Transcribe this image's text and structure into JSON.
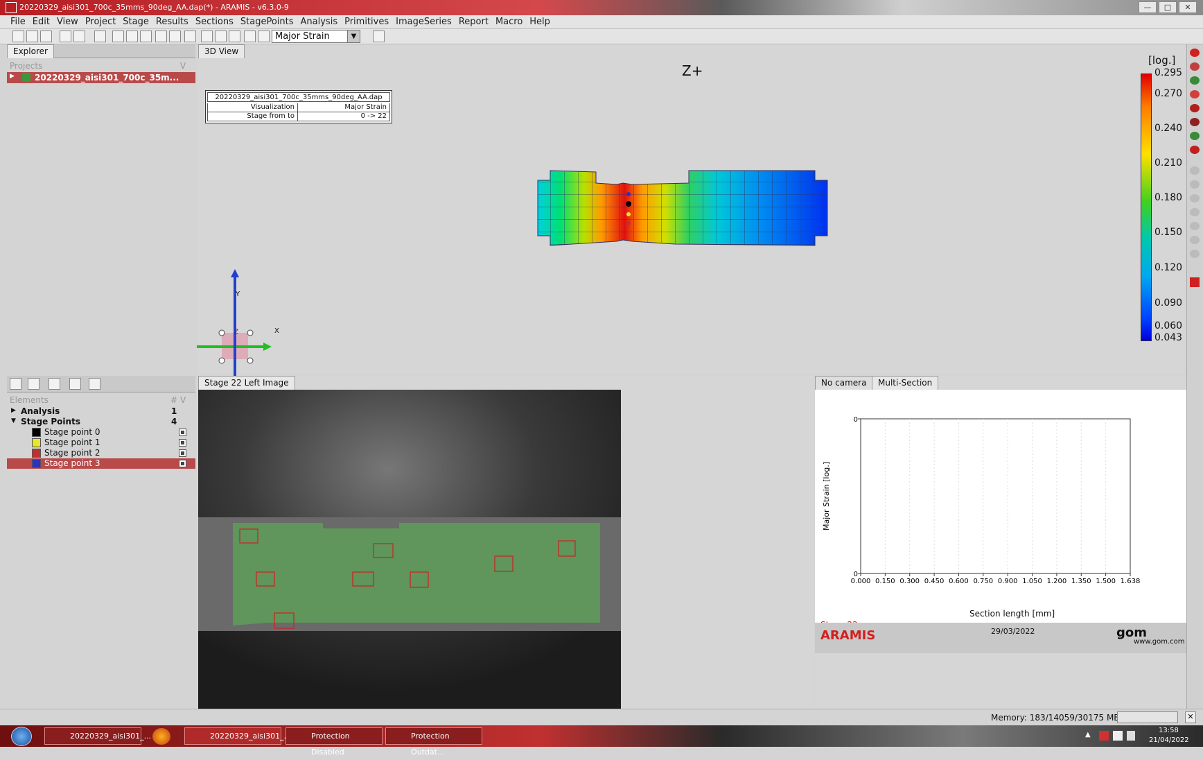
{
  "window": {
    "title": "20220329_aisi301_700c_35mms_90deg_AA.dap(*) - ARAMIS - v6.3.0-9"
  },
  "menu": [
    "File",
    "Edit",
    "View",
    "Project",
    "Stage",
    "Results",
    "Sections",
    "StagePoints",
    "Analysis",
    "Primitives",
    "ImageSeries",
    "Report",
    "Macro",
    "Help"
  ],
  "toolbar": {
    "visualization_select": "Major Strain"
  },
  "explorer": {
    "tab": "Explorer",
    "projects_label": "Projects",
    "projects_flag": "V",
    "project_name": "20220329_aisi301_700c_35m..."
  },
  "elements": {
    "header": "Elements",
    "count_col": "#",
    "flag_col": "V",
    "analysis": {
      "label": "Analysis",
      "count": "1"
    },
    "stage_points": {
      "label": "Stage Points",
      "count": "4"
    },
    "points": [
      {
        "label": "Stage point 0",
        "color": "#000000"
      },
      {
        "label": "Stage point 1",
        "color": "#e6e62a"
      },
      {
        "label": "Stage point 2",
        "color": "#c03030"
      },
      {
        "label": "Stage point 3",
        "color": "#3030c0"
      }
    ]
  },
  "view3d": {
    "tab": "3D View",
    "orientation": "Z+",
    "info_box": {
      "filename": "20220329_aisi301_700c_35mms_90deg_AA.dap",
      "rows": [
        {
          "key": "Visualization",
          "value": "Major Strain"
        },
        {
          "key": "Stage from to",
          "value": "0 -> 22"
        }
      ]
    },
    "legend": {
      "unit": "[log.]",
      "labels": [
        "0.295",
        "0.270",
        "0.240",
        "0.210",
        "0.180",
        "0.150",
        "0.120",
        "0.090",
        "0.060",
        "0.043"
      ]
    },
    "axis_x": "X",
    "axis_y": "Y",
    "axis_z": "Z"
  },
  "left_image": {
    "tab": "Stage 22 Left Image"
  },
  "multi_section": {
    "tabs": [
      "No camera",
      "Multi-Section"
    ],
    "chart_data": {
      "type": "line",
      "xlabel": "Section length [mm]",
      "ylabel": "Major Strain [log.]",
      "x_ticks": [
        "0.000",
        "0.150",
        "0.300",
        "0.450",
        "0.600",
        "0.750",
        "0.900",
        "1.050",
        "1.200",
        "1.350",
        "1.500",
        "1.638"
      ],
      "y_ticks": [
        "0",
        "0"
      ],
      "series": []
    },
    "stage_label": "Stage 22",
    "brand": "ARAMIS",
    "date": "29/03/2022",
    "gom_logo": "gom",
    "gom_url": "www.gom.com"
  },
  "status": {
    "memory": "Memory: 183/14059/30175 MB"
  },
  "taskbar": {
    "items": [
      "20220329_aisi301_...",
      "20220329_aisi301_...",
      "Protection Disabled",
      "Protection Outdat..."
    ],
    "time": "13:58",
    "date": "21/04/2022"
  }
}
